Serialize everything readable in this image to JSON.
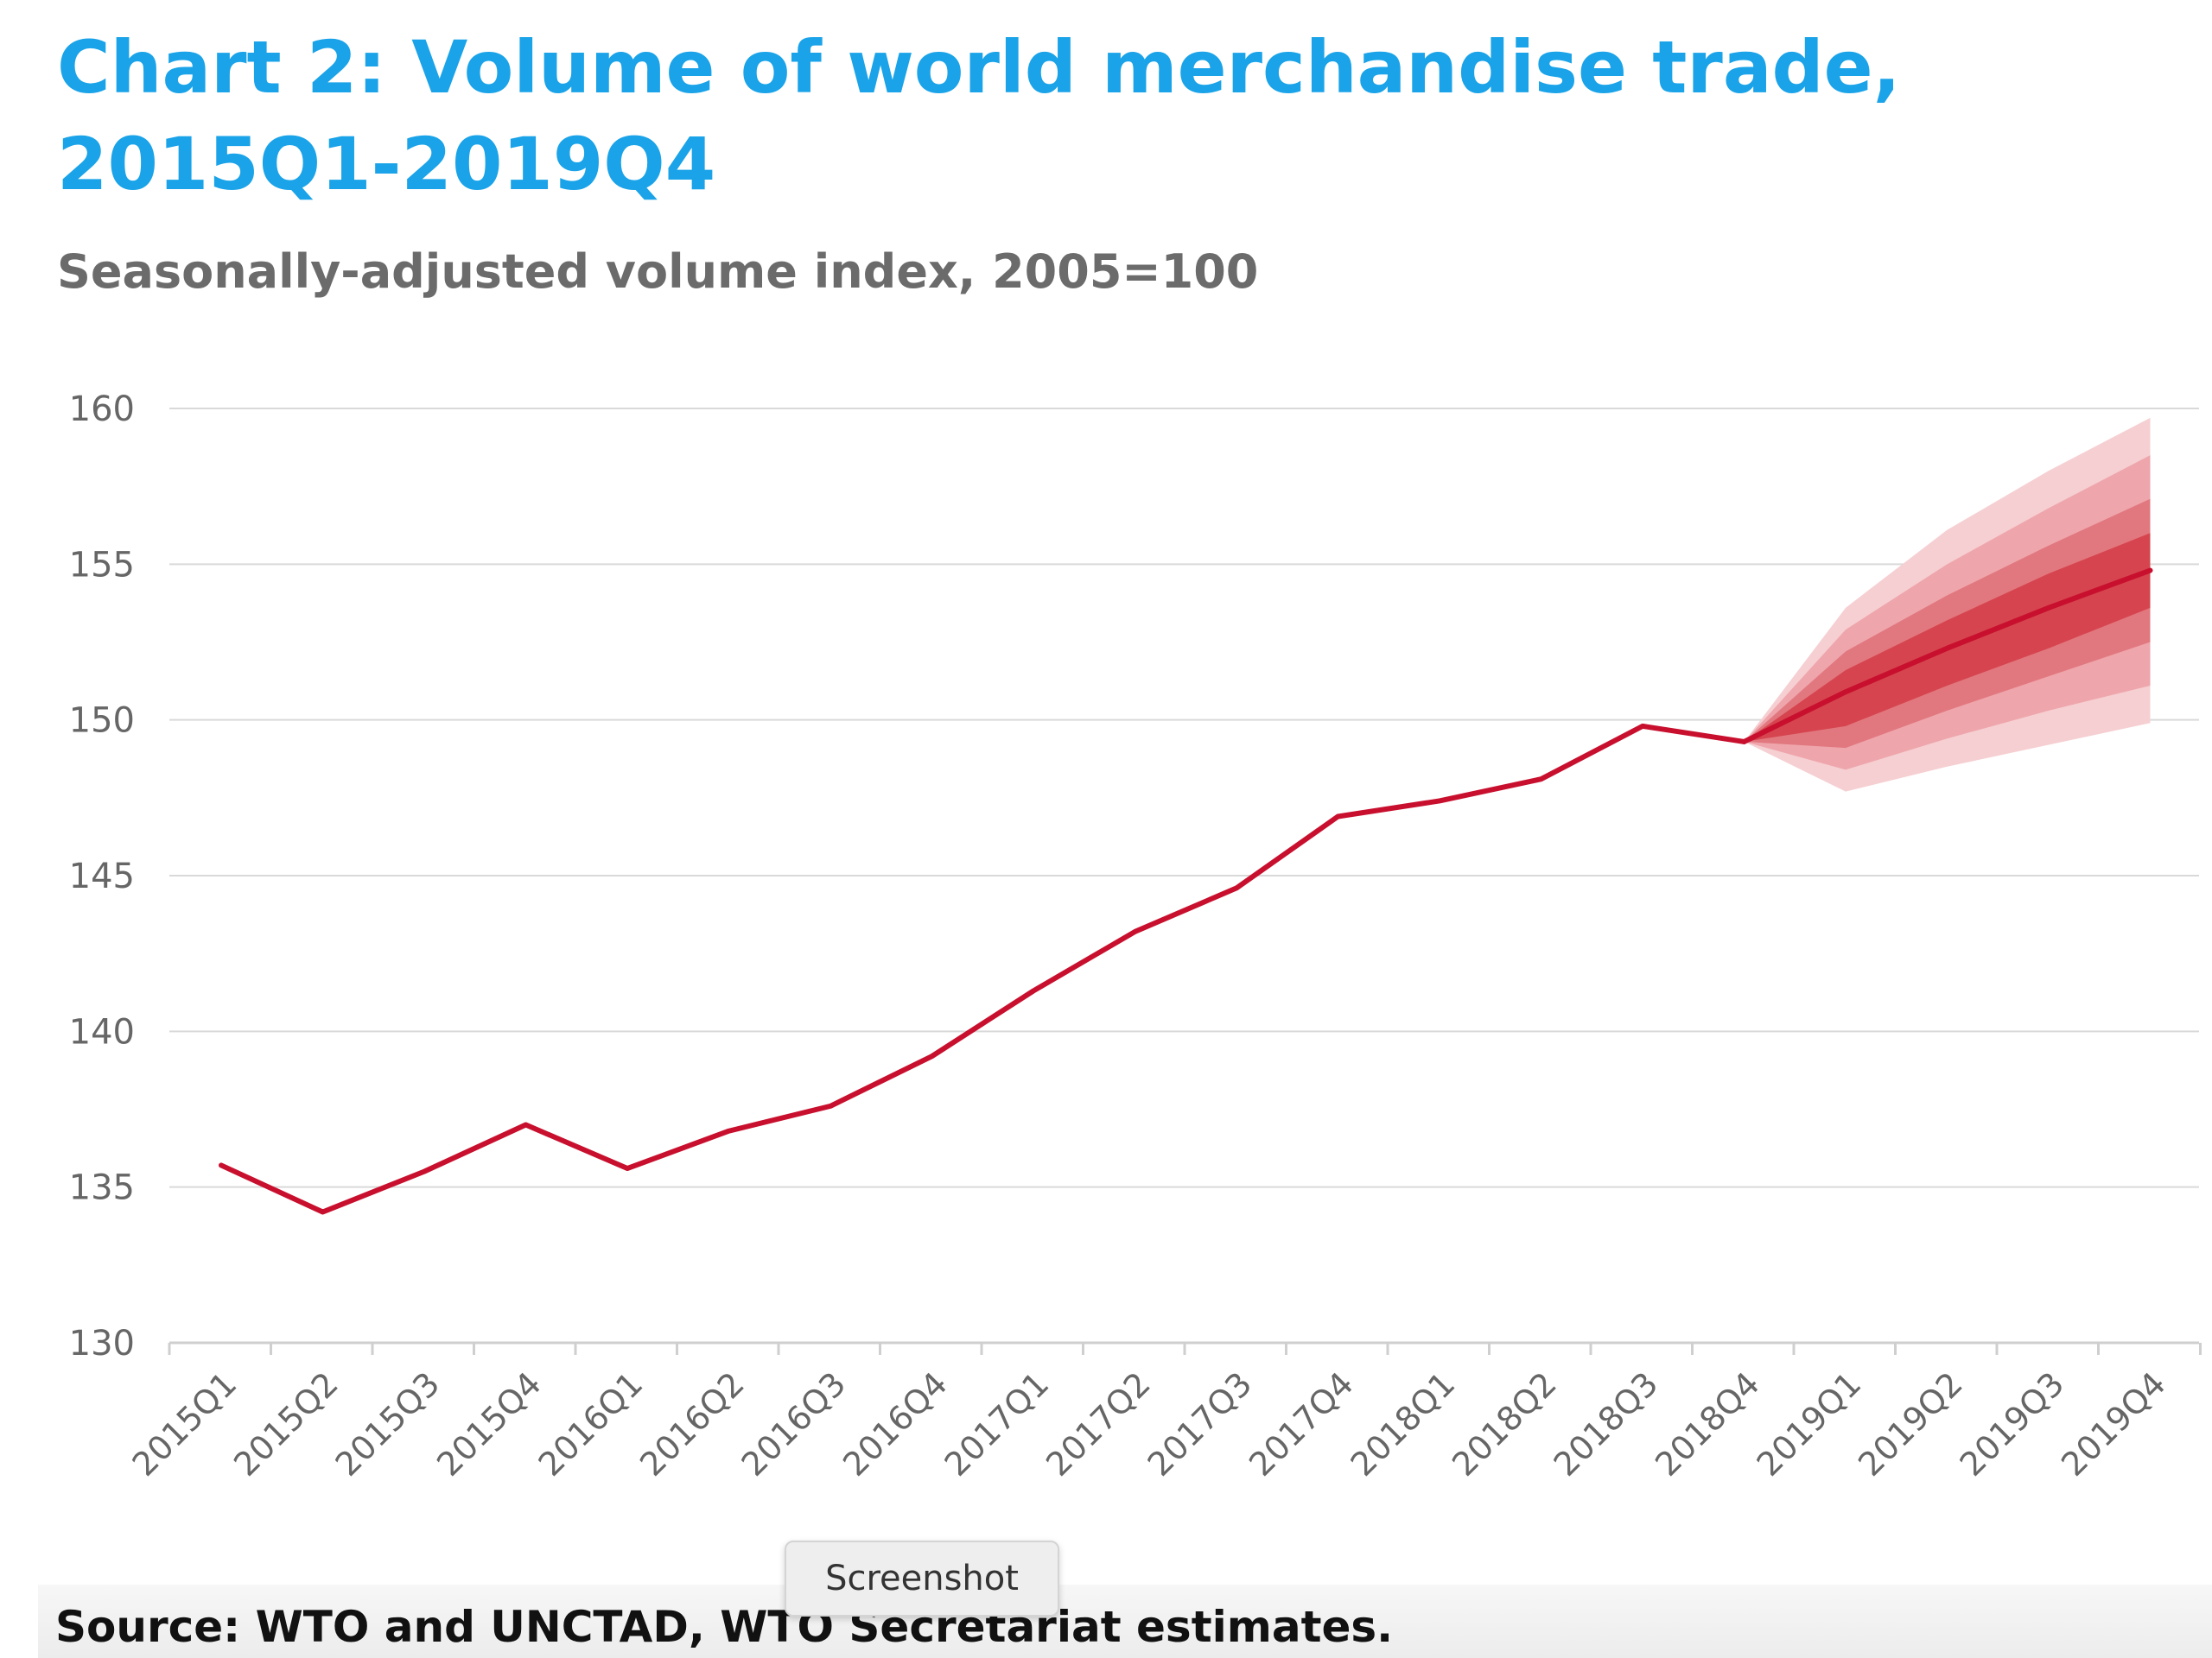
{
  "chart_data": {
    "type": "line",
    "title_lines": [
      "Chart 2: Volume of world merchandise trade,",
      "2015Q1-2019Q4"
    ],
    "subtitle": "Seasonally-adjusted volume index, 2005=100",
    "xlabel": "",
    "ylabel": "",
    "ylim": [
      130,
      160
    ],
    "y_ticks": [
      "160",
      "155",
      "150",
      "145",
      "140",
      "135",
      "130"
    ],
    "grid": true,
    "categories": [
      "2015Q1",
      "2015Q2",
      "2015Q3",
      "2015Q4",
      "2016Q1",
      "2016Q2",
      "2016Q3",
      "2016Q4",
      "2017Q1",
      "2017Q2",
      "2017Q3",
      "2017Q4",
      "2018Q1",
      "2018Q2",
      "2018Q3",
      "2018Q4",
      "2019Q1",
      "2019Q2",
      "2019Q3",
      "2019Q4"
    ],
    "series": [
      {
        "values": [
          135.7,
          134.2,
          135.5,
          137.0,
          135.6,
          136.8,
          137.6,
          139.2,
          141.3,
          143.2,
          144.6,
          146.9,
          147.4,
          148.1,
          149.8,
          149.3,
          null,
          null,
          null,
          null
        ],
        "color": "#c8102e"
      },
      {
        "values": [
          null,
          null,
          null,
          null,
          null,
          null,
          null,
          null,
          null,
          null,
          null,
          null,
          null,
          null,
          null,
          149.3,
          150.9,
          152.3,
          153.6,
          154.8
        ],
        "color": "#c8102e"
      }
    ],
    "forecast_bands": [
      {
        "lower": [
          149.3,
          147.7,
          148.5,
          149.2,
          149.9
        ],
        "upper": [
          149.3,
          153.6,
          156.1,
          158.0,
          159.7
        ],
        "color": "#f6cfd2"
      },
      {
        "lower": [
          149.3,
          148.4,
          149.4,
          150.3,
          151.1
        ],
        "upper": [
          149.3,
          152.9,
          155.0,
          156.8,
          158.5
        ],
        "color": "#eea6ac"
      },
      {
        "lower": [
          149.3,
          149.1,
          150.3,
          151.4,
          152.5
        ],
        "upper": [
          149.3,
          152.2,
          154.0,
          155.6,
          157.1
        ],
        "color": "#e2787f"
      },
      {
        "lower": [
          149.3,
          149.8,
          151.1,
          152.3,
          153.6
        ],
        "upper": [
          149.3,
          151.6,
          153.2,
          154.7,
          156.0
        ],
        "color": "#d6454f"
      }
    ]
  },
  "source_text": "Source: WTO and UNCTAD, WTO Secretariat estimates.",
  "tooltip_text": "Screenshot",
  "colors": {
    "title": "#1aa3e8",
    "subtitle": "#6b6b6b",
    "grid": "#d9d9d9",
    "line": "#c8102e"
  }
}
